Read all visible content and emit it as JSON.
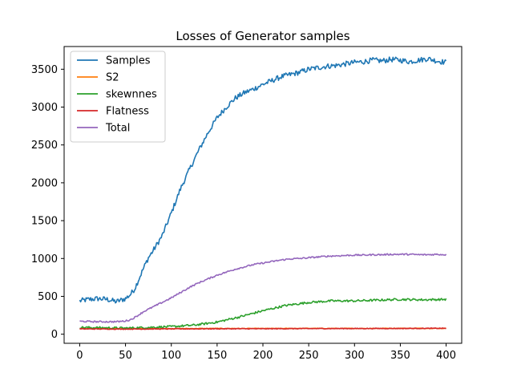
{
  "chart_data": {
    "type": "line",
    "title": "Losses of Generator samples",
    "xlabel": "",
    "ylabel": "",
    "xlim": [
      -17,
      417
    ],
    "ylim": [
      -120,
      3800
    ],
    "xticks": [
      0,
      50,
      100,
      150,
      200,
      250,
      300,
      350,
      400
    ],
    "yticks": [
      0,
      500,
      1000,
      1500,
      2000,
      2500,
      3000,
      3500
    ],
    "grid": false,
    "legend_position": "top-left",
    "series": [
      {
        "name": "Samples",
        "color": "#1f77b4",
        "x": [
          0,
          10,
          20,
          30,
          40,
          50,
          55,
          60,
          65,
          70,
          75,
          80,
          90,
          100,
          110,
          120,
          130,
          140,
          150,
          160,
          170,
          180,
          190,
          200,
          210,
          220,
          230,
          240,
          250,
          260,
          270,
          280,
          290,
          300,
          310,
          320,
          330,
          340,
          350,
          360,
          370,
          380,
          390,
          400
        ],
        "y": [
          440,
          460,
          470,
          460,
          430,
          470,
          520,
          600,
          740,
          880,
          1010,
          1100,
          1300,
          1600,
          1920,
          2180,
          2430,
          2660,
          2860,
          3000,
          3120,
          3190,
          3240,
          3300,
          3350,
          3400,
          3430,
          3460,
          3500,
          3520,
          3540,
          3550,
          3570,
          3590,
          3600,
          3620,
          3610,
          3630,
          3620,
          3600,
          3620,
          3640,
          3610,
          3590
        ]
      },
      {
        "name": "S2",
        "color": "#ff7f0e",
        "x": [
          0,
          50,
          100,
          150,
          200,
          250,
          300,
          350,
          400
        ],
        "y": [
          75,
          72,
          74,
          76,
          75,
          77,
          76,
          78,
          77
        ]
      },
      {
        "name": "skewnnes",
        "color": "#2ca02c",
        "x": [
          0,
          25,
          50,
          75,
          100,
          125,
          150,
          175,
          200,
          225,
          250,
          275,
          300,
          325,
          350,
          375,
          400
        ],
        "y": [
          90,
          85,
          80,
          90,
          100,
          120,
          160,
          230,
          310,
          380,
          420,
          440,
          440,
          450,
          460,
          455,
          460
        ]
      },
      {
        "name": "Flatness",
        "color": "#d62728",
        "x": [
          0,
          50,
          100,
          150,
          200,
          250,
          300,
          350,
          400
        ],
        "y": [
          70,
          68,
          70,
          72,
          72,
          74,
          75,
          76,
          78
        ]
      },
      {
        "name": "Total",
        "color": "#9467bd",
        "x": [
          0,
          20,
          40,
          50,
          55,
          60,
          65,
          70,
          80,
          90,
          100,
          110,
          120,
          130,
          140,
          150,
          160,
          170,
          180,
          190,
          200,
          210,
          220,
          230,
          240,
          250,
          260,
          270,
          280,
          290,
          300,
          310,
          320,
          330,
          340,
          350,
          360,
          370,
          380,
          390,
          400
        ],
        "y": [
          170,
          165,
          165,
          175,
          190,
          220,
          260,
          300,
          360,
          420,
          480,
          550,
          620,
          680,
          730,
          780,
          820,
          860,
          890,
          920,
          940,
          960,
          980,
          995,
          1000,
          1010,
          1020,
          1030,
          1035,
          1040,
          1045,
          1045,
          1050,
          1050,
          1055,
          1055,
          1055,
          1050,
          1050,
          1055,
          1050
        ]
      }
    ]
  }
}
